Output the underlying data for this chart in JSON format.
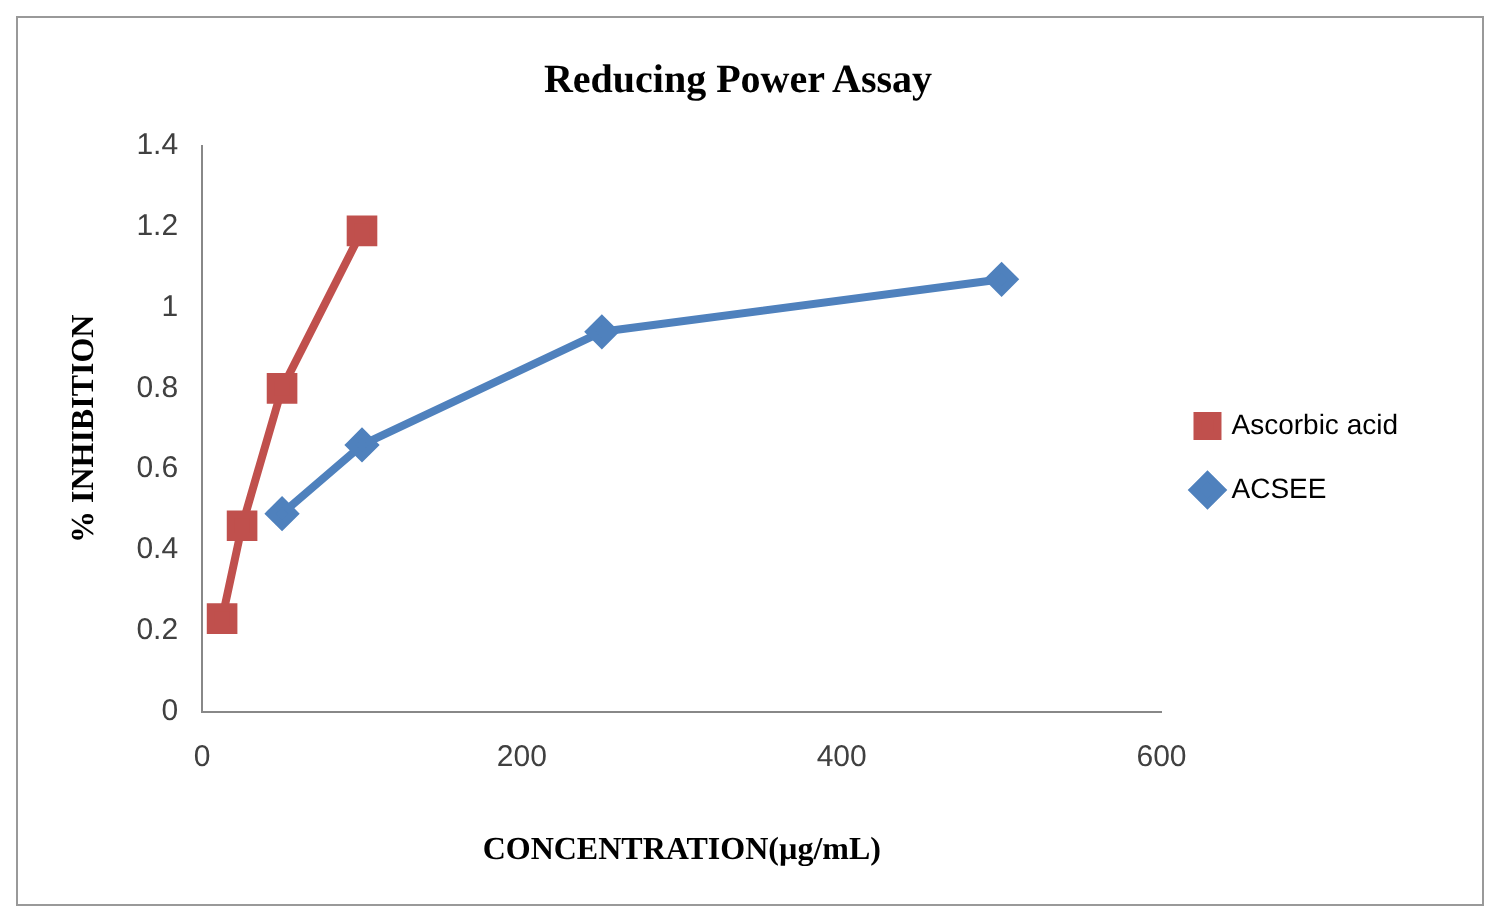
{
  "chart_data": {
    "type": "line",
    "title": "Reducing Power Assay",
    "xlabel": "CONCENTRATION(µg/mL)",
    "ylabel": "% INHIBITION",
    "series": [
      {
        "name": "Ascorbic acid",
        "color": "#c0504d",
        "marker": "square",
        "x": [
          12.5,
          25,
          50,
          100
        ],
        "values": [
          0.23,
          0.46,
          0.8,
          1.19
        ]
      },
      {
        "name": "ACSEE",
        "color": "#4f81bd",
        "marker": "diamond",
        "x": [
          50,
          100,
          250,
          500
        ],
        "values": [
          0.49,
          0.66,
          0.94,
          1.07
        ]
      }
    ],
    "xlim": [
      0,
      600
    ],
    "xticks": [
      0,
      200,
      400,
      600
    ],
    "ylim": [
      0,
      1.4
    ],
    "yticks": [
      0,
      0.2,
      0.4,
      0.6,
      0.8,
      1,
      1.2,
      1.4
    ],
    "grid": false,
    "legend": "right"
  }
}
